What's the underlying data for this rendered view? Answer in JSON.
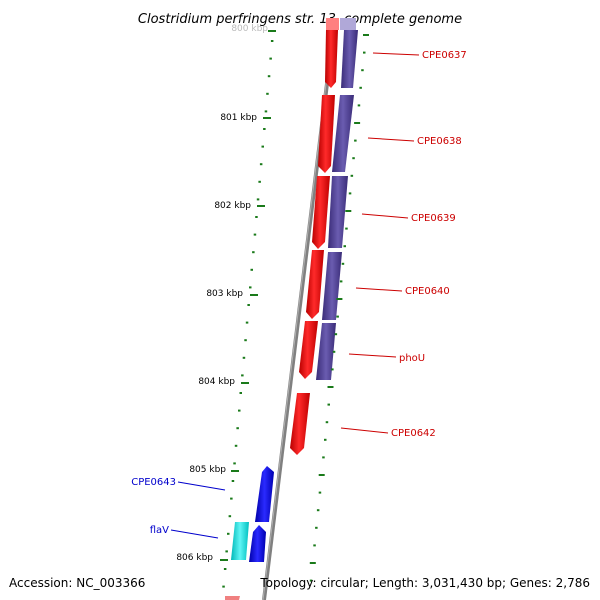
{
  "header": {
    "title": "Clostridium perfringens str. 13, complete genome"
  },
  "footer": {
    "accession": "Accession: NC_003366",
    "summary": "Topology: circular; Length: 3,031,430 bp; Genes: 2,786"
  },
  "ruler": {
    "ticks": [
      {
        "label": "800 kbp"
      },
      {
        "label": "801 kbp"
      },
      {
        "label": "802 kbp"
      },
      {
        "label": "803 kbp"
      },
      {
        "label": "804 kbp"
      },
      {
        "label": "805 kbp"
      },
      {
        "label": "806 kbp"
      }
    ]
  },
  "features": {
    "labels": [
      {
        "name": "CPE0637",
        "color": "#cc0000"
      },
      {
        "name": "CPE0638",
        "color": "#cc0000"
      },
      {
        "name": "CPE0639",
        "color": "#cc0000"
      },
      {
        "name": "CPE0640",
        "color": "#cc0000"
      },
      {
        "name": "phoU",
        "color": "#cc0000"
      },
      {
        "name": "CPE0642",
        "color": "#cc0000"
      },
      {
        "name": "CPE0643",
        "color": "#0000cc"
      },
      {
        "name": "flaV",
        "color": "#0000cc"
      }
    ]
  },
  "colors": {
    "forward_cds": "#ff0000",
    "reverse_cds": "#0000ff",
    "rna_feature": "#00e5e5",
    "gc_track": "#4b3b8f",
    "backbone": "#808080",
    "tick": "#1a7a1a"
  }
}
